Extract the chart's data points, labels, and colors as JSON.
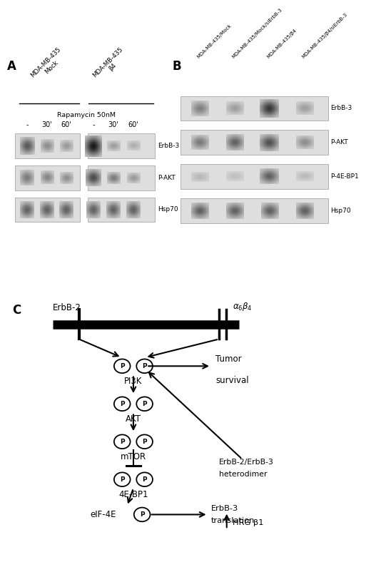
{
  "panel_A_label": "A",
  "panel_B_label": "B",
  "panel_C_label": "C",
  "panel_A": {
    "group1_label": "MDA-MB-435\nMock",
    "group2_label": "MDA-MB-435\nβ4",
    "rapamycin_label": "Rapamycin 50nM",
    "timepoints": [
      "-",
      "30'",
      "60'",
      "-",
      "30'",
      "60'"
    ],
    "blots": [
      "ErbB-3",
      "P-AKT",
      "Hsp70"
    ]
  },
  "panel_B": {
    "columns": [
      "MDA-MB-435/Mock",
      "MDA-MB-435/Mock/siErbB-3",
      "MDA-MB-435/β4",
      "MDA-MB-435/β4/siErbB-3"
    ],
    "blots": [
      "ErbB-3",
      "P-AKT",
      "P-4E-BP1",
      "Hsp70"
    ]
  },
  "bg_color": "#ffffff",
  "line_color": "#000000"
}
